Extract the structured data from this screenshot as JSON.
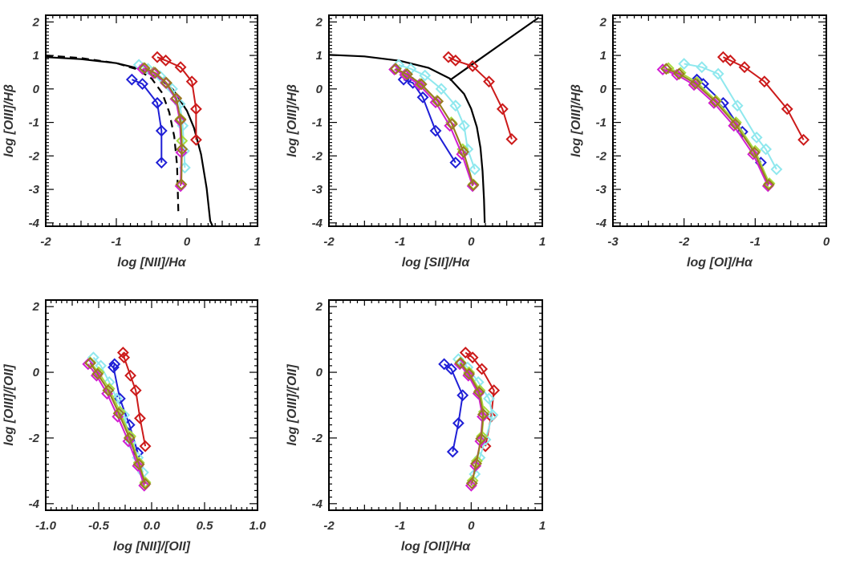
{
  "figure": {
    "colors": {
      "blue": "#1f1fd6",
      "red": "#cc1a1a",
      "cyan": "#8fe8ee",
      "green": "#a8dc3c",
      "magenta": "#d21ed2",
      "olive": "#9a7a22",
      "black": "#000000"
    }
  },
  "chart_data": [
    {
      "type": "line",
      "xlabel": "log [NII]/Hα",
      "ylabel": "log [OIII]/Hβ",
      "xlim": [
        -2,
        1
      ],
      "ylim": [
        -4.1,
        2.2
      ],
      "xticks": [
        -2,
        -1,
        0,
        1
      ],
      "xtick_labels": [
        "-2",
        "-1",
        "0",
        "1"
      ],
      "yticks": [
        -4,
        -3,
        -2,
        -1,
        0,
        1,
        2
      ],
      "ytick_labels": [
        "-4",
        "-3",
        "-2",
        "-1",
        "0",
        "1",
        "2"
      ],
      "marker": "diamond",
      "series": [
        {
          "color": "blue",
          "x": [
            -0.78,
            -0.63,
            -0.42,
            -0.36,
            -0.36
          ],
          "y": [
            0.28,
            0.15,
            -0.42,
            -1.25,
            -2.2
          ]
        },
        {
          "color": "red",
          "x": [
            -0.42,
            -0.3,
            -0.09,
            0.07,
            0.13,
            0.13
          ],
          "y": [
            0.95,
            0.85,
            0.65,
            0.22,
            -0.6,
            -1.52
          ]
        },
        {
          "color": "cyan",
          "x": [
            -0.68,
            -0.55,
            -0.38,
            -0.21,
            -0.1,
            -0.06,
            -0.04,
            -0.03
          ],
          "y": [
            0.72,
            0.6,
            0.38,
            0.0,
            -0.45,
            -1.1,
            -1.85,
            -2.35
          ]
        },
        {
          "color": "green",
          "x": [
            -0.62,
            -0.47,
            -0.3,
            -0.16,
            -0.09,
            -0.07,
            -0.08
          ],
          "y": [
            0.62,
            0.5,
            0.2,
            -0.3,
            -0.9,
            -1.55,
            -2.85
          ]
        },
        {
          "color": "magenta",
          "x": [
            -0.63,
            -0.47,
            -0.3,
            -0.16,
            -0.1,
            -0.08,
            -0.09
          ],
          "y": [
            0.6,
            0.47,
            0.18,
            -0.3,
            -0.95,
            -1.9,
            -2.9
          ]
        },
        {
          "color": "olive",
          "x": [
            -0.6,
            -0.45,
            -0.29,
            -0.15,
            -0.09,
            -0.07,
            -0.08
          ],
          "y": [
            0.62,
            0.48,
            0.18,
            -0.28,
            -0.92,
            -1.8,
            -2.85
          ]
        }
      ],
      "curves": [
        {
          "color": "black",
          "style": "solid",
          "x": [
            -2.0,
            -1.5,
            -1.0,
            -0.7,
            -0.4,
            -0.2,
            0.0,
            0.1,
            0.2,
            0.28,
            0.33,
            0.36
          ],
          "y": [
            0.95,
            0.89,
            0.77,
            0.62,
            0.33,
            -0.01,
            -0.65,
            -1.16,
            -1.95,
            -2.97,
            -3.94,
            -4.08
          ]
        },
        {
          "color": "black",
          "style": "dashed",
          "x": [
            -2.0,
            -1.5,
            -1.0,
            -0.7,
            -0.5,
            -0.35,
            -0.25,
            -0.18,
            -0.14,
            -0.12
          ],
          "y": [
            1.0,
            0.92,
            0.77,
            0.58,
            0.31,
            -0.12,
            -0.7,
            -1.42,
            -2.28,
            -3.75
          ]
        }
      ]
    },
    {
      "type": "line",
      "xlabel": "log [SII]/Hα",
      "ylabel": "log [OIII]/Hβ",
      "xlim": [
        -2,
        1
      ],
      "ylim": [
        -4.1,
        2.2
      ],
      "xticks": [
        -2,
        -1,
        0,
        1
      ],
      "xtick_labels": [
        "-2",
        "-1",
        "0",
        "1"
      ],
      "yticks": [
        -4,
        -3,
        -2,
        -1,
        0,
        1,
        2
      ],
      "ytick_labels": [
        "-4",
        "-3",
        "-2",
        "-1",
        "0",
        "1",
        "2"
      ],
      "marker": "diamond",
      "series": [
        {
          "color": "blue",
          "x": [
            -0.95,
            -0.82,
            -0.68,
            -0.5,
            -0.22
          ],
          "y": [
            0.28,
            0.18,
            -0.25,
            -1.25,
            -2.2
          ]
        },
        {
          "color": "red",
          "x": [
            -0.32,
            -0.22,
            0.02,
            0.25,
            0.44,
            0.57
          ],
          "y": [
            0.95,
            0.85,
            0.68,
            0.22,
            -0.6,
            -1.5
          ]
        },
        {
          "color": "cyan",
          "x": [
            -1.02,
            -0.85,
            -0.65,
            -0.42,
            -0.22,
            -0.1,
            -0.05,
            0.05
          ],
          "y": [
            0.72,
            0.6,
            0.4,
            0.0,
            -0.5,
            -1.1,
            -1.8,
            -2.4
          ]
        },
        {
          "color": "green",
          "x": [
            -1.07,
            -0.92,
            -0.72,
            -0.48,
            -0.28,
            -0.12,
            0.03
          ],
          "y": [
            0.6,
            0.45,
            0.15,
            -0.35,
            -1.0,
            -1.8,
            -2.85
          ]
        },
        {
          "color": "magenta",
          "x": [
            -1.08,
            -0.93,
            -0.73,
            -0.5,
            -0.3,
            -0.13,
            0.02
          ],
          "y": [
            0.58,
            0.42,
            0.12,
            -0.4,
            -1.1,
            -1.95,
            -2.9
          ]
        },
        {
          "color": "olive",
          "x": [
            -1.06,
            -0.9,
            -0.7,
            -0.47,
            -0.27,
            -0.11,
            0.03
          ],
          "y": [
            0.6,
            0.44,
            0.14,
            -0.37,
            -1.05,
            -1.88,
            -2.87
          ]
        }
      ],
      "curves": [
        {
          "color": "black",
          "style": "solid",
          "x": [
            -2.0,
            -1.5,
            -1.0,
            -0.6,
            -0.3,
            -0.1,
            0.0,
            0.08,
            0.13,
            0.16,
            0.18,
            0.19
          ],
          "y": [
            1.02,
            0.97,
            0.84,
            0.63,
            0.31,
            -0.15,
            -0.59,
            -1.14,
            -1.76,
            -2.46,
            -3.3,
            -4.0
          ]
        },
        {
          "color": "black",
          "style": "solid",
          "x": [
            -0.3,
            0.0,
            0.5,
            0.95
          ],
          "y": [
            0.26,
            0.71,
            1.46,
            2.13
          ]
        }
      ]
    },
    {
      "type": "line",
      "xlabel": "log [OI]/Hα",
      "ylabel": "log [OIII]/Hβ",
      "xlim": [
        -3,
        0
      ],
      "ylim": [
        -4.1,
        2.2
      ],
      "xticks": [
        -3,
        -2,
        -1,
        0
      ],
      "xtick_labels": [
        "-3",
        "-2",
        "-1",
        "0"
      ],
      "yticks": [
        -4,
        -3,
        -2,
        -1,
        0,
        1,
        2
      ],
      "ytick_labels": [
        "-4",
        "-3",
        "-2",
        "-1",
        "0",
        "1",
        "2"
      ],
      "marker": "diamond",
      "series": [
        {
          "color": "blue",
          "x": [
            -1.82,
            -1.73,
            -1.45,
            -1.18,
            -0.92
          ],
          "y": [
            0.28,
            0.15,
            -0.42,
            -1.28,
            -2.2
          ]
        },
        {
          "color": "red",
          "x": [
            -1.45,
            -1.35,
            -1.15,
            -0.87,
            -0.55,
            -0.32
          ],
          "y": [
            0.95,
            0.85,
            0.65,
            0.22,
            -0.6,
            -1.52
          ]
        },
        {
          "color": "cyan",
          "x": [
            -2.0,
            -1.75,
            -1.52,
            -1.25,
            -0.98,
            -0.85,
            -0.7
          ],
          "y": [
            0.75,
            0.65,
            0.45,
            -0.5,
            -1.45,
            -1.8,
            -2.4
          ]
        },
        {
          "color": "green",
          "x": [
            -2.22,
            -2.05,
            -1.82,
            -1.55,
            -1.27,
            -1.0,
            -0.8
          ],
          "y": [
            0.62,
            0.48,
            0.2,
            -0.35,
            -1.0,
            -1.85,
            -2.82
          ]
        },
        {
          "color": "magenta",
          "x": [
            -2.3,
            -2.1,
            -1.86,
            -1.58,
            -1.3,
            -1.03,
            -0.82
          ],
          "y": [
            0.58,
            0.42,
            0.12,
            -0.42,
            -1.1,
            -1.95,
            -2.9
          ]
        },
        {
          "color": "olive",
          "x": [
            -2.25,
            -2.07,
            -1.84,
            -1.56,
            -1.28,
            -1.01,
            -0.81
          ],
          "y": [
            0.6,
            0.45,
            0.16,
            -0.38,
            -1.05,
            -1.9,
            -2.86
          ]
        }
      ],
      "curves": []
    },
    {
      "type": "line",
      "xlabel": "log [NII]/[OII]",
      "ylabel": "log [OIII]/[OII]",
      "xlim": [
        -1,
        1
      ],
      "ylim": [
        -4.2,
        2.2
      ],
      "xticks": [
        -1,
        -0.5,
        0,
        0.5,
        1
      ],
      "xtick_labels": [
        "-1.0",
        "-0.5",
        "0.0",
        "0.5",
        "1.0"
      ],
      "yticks": [
        -4,
        -2,
        0,
        2
      ],
      "ytick_labels": [
        "-4",
        "-2",
        "0",
        "2"
      ],
      "marker": "diamond",
      "series": [
        {
          "color": "blue",
          "x": [
            -0.35,
            -0.36,
            -0.3,
            -0.21,
            -0.13
          ],
          "y": [
            0.25,
            0.15,
            -0.8,
            -1.6,
            -2.45
          ]
        },
        {
          "color": "red",
          "x": [
            -0.27,
            -0.26,
            -0.2,
            -0.15,
            -0.11,
            -0.06
          ],
          "y": [
            0.6,
            0.45,
            -0.1,
            -0.55,
            -1.4,
            -2.25
          ]
        },
        {
          "color": "cyan",
          "x": [
            -0.55,
            -0.48,
            -0.4,
            -0.33,
            -0.26,
            -0.2,
            -0.13,
            -0.08
          ],
          "y": [
            0.45,
            0.2,
            -0.3,
            -0.8,
            -1.3,
            -2.15,
            -2.6,
            -3.05
          ]
        },
        {
          "color": "green",
          "x": [
            -0.58,
            -0.5,
            -0.4,
            -0.3,
            -0.2,
            -0.12,
            -0.06
          ],
          "y": [
            0.3,
            0.0,
            -0.5,
            -1.2,
            -1.95,
            -2.75,
            -3.35
          ]
        },
        {
          "color": "magenta",
          "x": [
            -0.6,
            -0.52,
            -0.42,
            -0.32,
            -0.22,
            -0.13,
            -0.07
          ],
          "y": [
            0.25,
            -0.1,
            -0.65,
            -1.35,
            -2.1,
            -2.85,
            -3.45
          ]
        },
        {
          "color": "olive",
          "x": [
            -0.58,
            -0.51,
            -0.41,
            -0.31,
            -0.21,
            -0.12,
            -0.06
          ],
          "y": [
            0.28,
            -0.05,
            -0.55,
            -1.25,
            -2.0,
            -2.8,
            -3.4
          ]
        }
      ],
      "curves": []
    },
    {
      "type": "line",
      "xlabel": "log [OII]/Hα",
      "ylabel": "log [OIII]/[OII]",
      "xlim": [
        -2,
        1
      ],
      "ylim": [
        -4.2,
        2.2
      ],
      "xticks": [
        -2,
        -1,
        0,
        1
      ],
      "xtick_labels": [
        "-2",
        "-1",
        "0",
        "1"
      ],
      "yticks": [
        -4,
        -2,
        0,
        2
      ],
      "ytick_labels": [
        "-4",
        "-2",
        "0",
        "2"
      ],
      "marker": "diamond",
      "series": [
        {
          "color": "blue",
          "x": [
            -0.38,
            -0.28,
            -0.12,
            -0.18,
            -0.26
          ],
          "y": [
            0.25,
            0.1,
            -0.7,
            -1.55,
            -2.42
          ]
        },
        {
          "color": "red",
          "x": [
            -0.08,
            0.02,
            0.15,
            0.32,
            0.28,
            0.2
          ],
          "y": [
            0.6,
            0.45,
            0.1,
            -0.55,
            -1.35,
            -2.25
          ]
        },
        {
          "color": "cyan",
          "x": [
            -0.18,
            -0.05,
            0.1,
            0.25,
            0.3,
            0.2,
            0.12,
            0.05
          ],
          "y": [
            0.4,
            0.15,
            -0.3,
            -0.8,
            -1.3,
            -2.05,
            -2.6,
            -3.1
          ]
        },
        {
          "color": "green",
          "x": [
            -0.15,
            -0.03,
            0.12,
            0.18,
            0.15,
            0.08,
            0.02
          ],
          "y": [
            0.3,
            0.0,
            -0.55,
            -1.2,
            -1.95,
            -2.7,
            -3.3
          ]
        },
        {
          "color": "magenta",
          "x": [
            -0.16,
            -0.04,
            0.1,
            0.16,
            0.13,
            0.06,
            0.0
          ],
          "y": [
            0.25,
            -0.1,
            -0.65,
            -1.35,
            -2.1,
            -2.85,
            -3.45
          ]
        },
        {
          "color": "olive",
          "x": [
            -0.15,
            -0.03,
            0.11,
            0.17,
            0.14,
            0.07,
            0.01
          ],
          "y": [
            0.28,
            -0.05,
            -0.6,
            -1.28,
            -2.02,
            -2.78,
            -3.38
          ]
        }
      ],
      "curves": []
    }
  ]
}
